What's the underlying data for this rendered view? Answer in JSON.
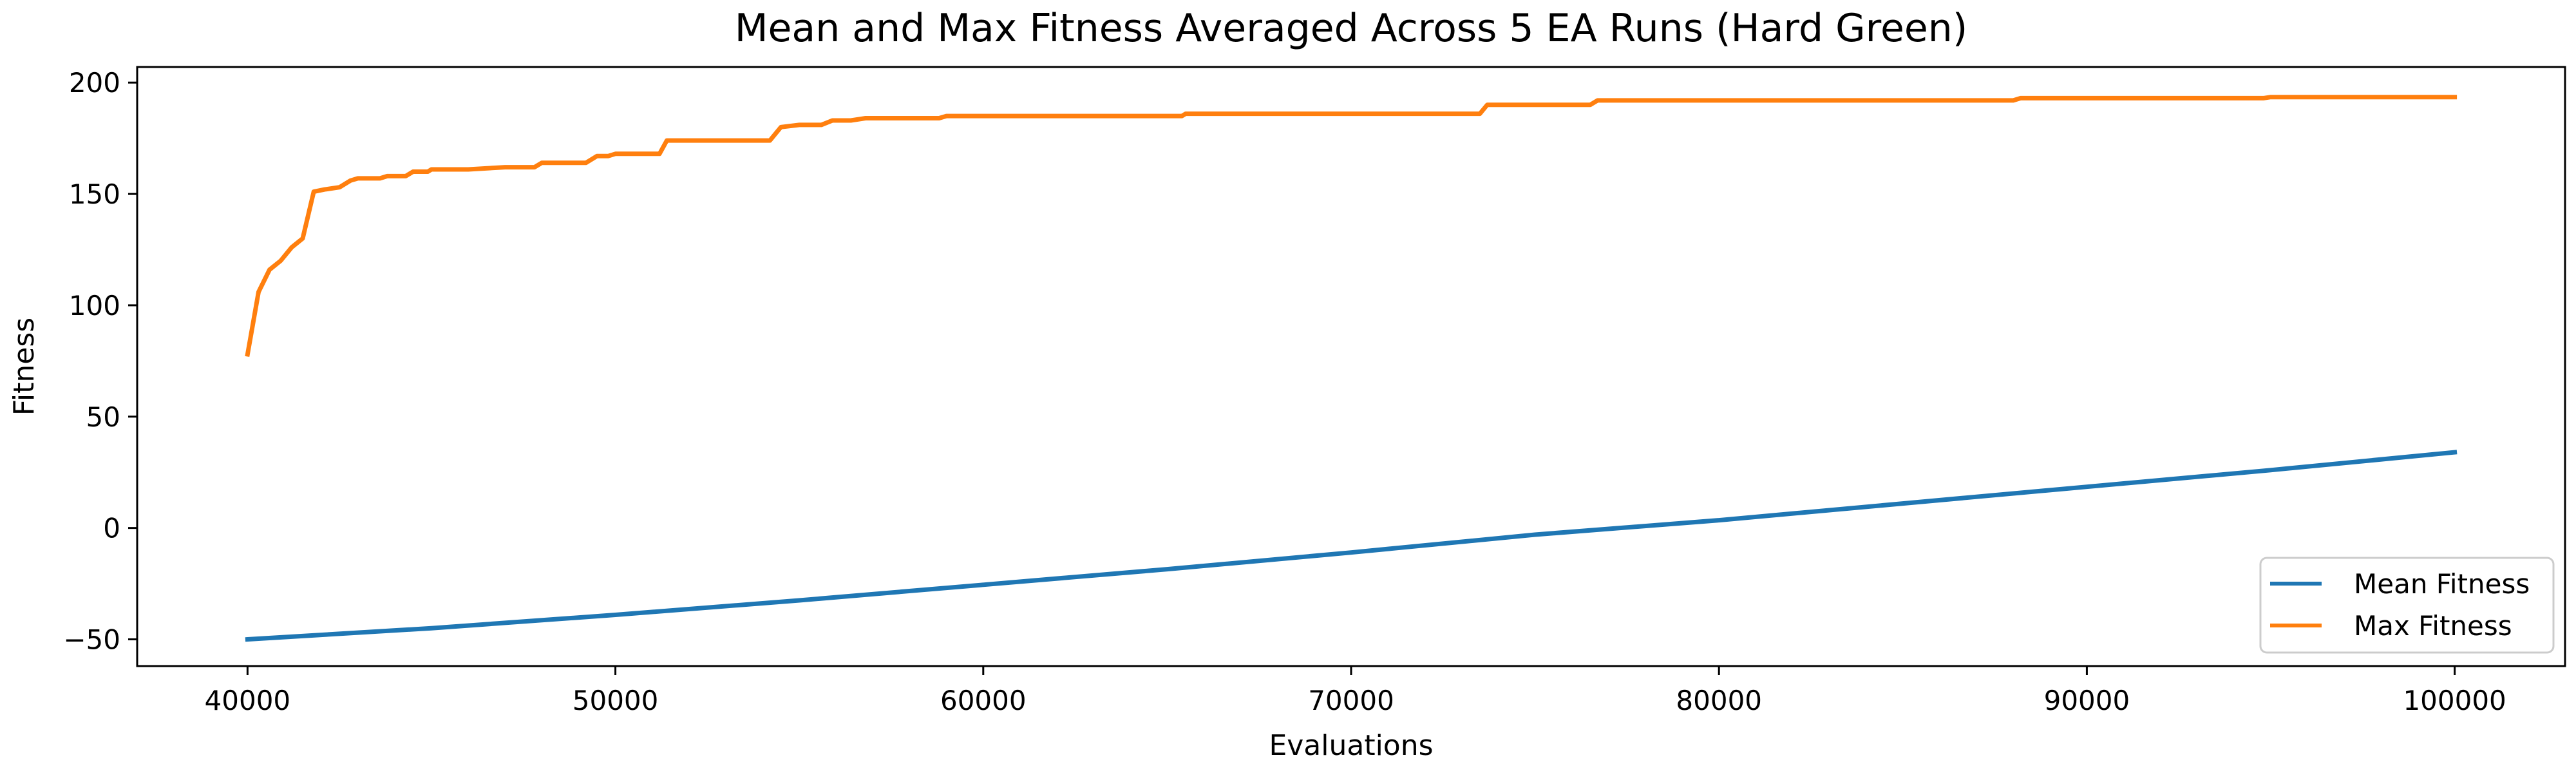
{
  "chart_data": {
    "type": "line",
    "title": "Mean and Max Fitness Averaged Across 5 EA Runs (Hard Green)",
    "xlabel": "Evaluations",
    "ylabel": "Fitness",
    "xlim": [
      37000,
      103000
    ],
    "ylim": [
      -62,
      207
    ],
    "xticks": [
      40000,
      50000,
      60000,
      70000,
      80000,
      90000,
      100000
    ],
    "yticks": [
      -50,
      0,
      50,
      100,
      150,
      200
    ],
    "xtick_labels": [
      "40000",
      "50000",
      "60000",
      "70000",
      "80000",
      "90000",
      "100000"
    ],
    "ytick_labels": [
      "−50",
      "0",
      "50",
      "100",
      "150",
      "200"
    ],
    "grid": false,
    "legend_position": "lower-right",
    "series": [
      {
        "name": "Mean Fitness",
        "color": "#1f77b4",
        "x": [
          40000,
          45000,
          50000,
          55000,
          60000,
          65000,
          70000,
          75000,
          80000,
          85000,
          90000,
          95000,
          100000
        ],
        "y": [
          -50,
          -45,
          -39,
          -32.5,
          -25.5,
          -18.5,
          -11,
          -3,
          3.5,
          11,
          18.5,
          26,
          34
        ]
      },
      {
        "name": "Max Fitness",
        "color": "#ff7f0e",
        "x": [
          40000,
          40300,
          40600,
          40900,
          41200,
          41500,
          41800,
          42100,
          42500,
          42800,
          43000,
          43600,
          43800,
          44300,
          44500,
          44900,
          45000,
          45400,
          46000,
          47000,
          47800,
          48000,
          49200,
          49500,
          49800,
          50000,
          51200,
          51400,
          52000,
          53000,
          54200,
          54500,
          55000,
          55600,
          55900,
          56400,
          56800,
          58800,
          59000,
          65400,
          65500,
          73500,
          73700,
          76500,
          76700,
          88000,
          88200,
          94800,
          95000,
          100000
        ],
        "y": [
          78,
          106,
          116,
          120,
          126,
          130,
          151,
          152,
          153,
          156,
          157,
          157,
          158,
          158,
          160,
          160,
          161,
          161,
          161,
          162,
          162,
          164,
          164,
          167,
          167,
          168,
          168,
          174,
          174,
          174,
          174,
          180,
          181,
          181,
          183,
          183,
          184,
          184,
          185,
          185,
          186,
          186,
          190,
          190,
          192,
          192,
          193,
          193,
          193.5,
          193.5
        ]
      }
    ]
  }
}
